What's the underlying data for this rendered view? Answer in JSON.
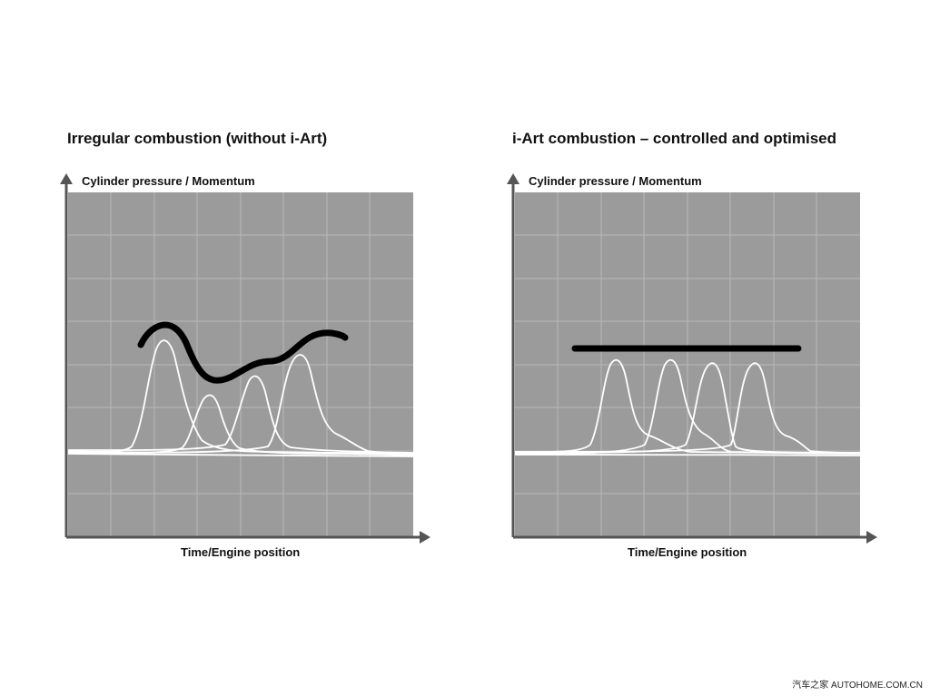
{
  "panels": [
    {
      "title": "Irregular combustion (without i-Art)",
      "y_axis_label": "Cylinder pressure / Momentum",
      "x_axis_label": "Time/Engine position",
      "momentum_curve": "irregular"
    },
    {
      "title": "i-Art combustion – controlled and optimised",
      "y_axis_label": "Cylinder pressure / Momentum",
      "x_axis_label": "Time/Engine position",
      "momentum_curve": "flat"
    }
  ],
  "watermark": "汽车之家 AUTOHOME.COM.CN",
  "colors": {
    "plot_background": "#9b9b9b",
    "grid": "#b4b4b4",
    "axis": "#555555",
    "pressure_curve": "#ffffff",
    "momentum_curve": "#000000"
  }
}
